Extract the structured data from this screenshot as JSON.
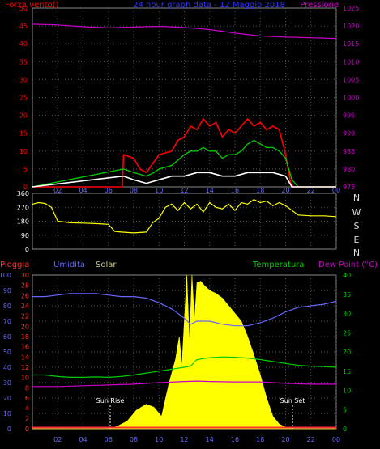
{
  "colors": {
    "wind": "#ff0000",
    "gust": "#ff0000",
    "wind_avg": "#00cc00",
    "wind_min": "#ffffff",
    "pressure": "#cc00cc",
    "direction": "#ffff00",
    "pioggia": "#ff3333",
    "umidita": "#6666ff",
    "solar": "#ffff00",
    "temperatura": "#00cc00",
    "dewpoint": "#cc00cc",
    "axis_blue": "#6666ff",
    "axis_green": "#00cc00",
    "grid": "#555555"
  },
  "top_header": {
    "left": "Forza vento()",
    "center": "24 hour graph data - 12 Maggio 2018",
    "right": "Pressione"
  },
  "dir_labels": [
    "N",
    "W",
    "S",
    "E",
    "N"
  ],
  "bottom_header": {
    "pioggia": "Pioggia",
    "umidita": "Umidita",
    "solar": "Solar",
    "temperatura": "Temperatura",
    "dewpoint": "Dew Point (°C)"
  },
  "annotations": {
    "sunrise": "Sun Rise",
    "sunset": "Sun Set"
  },
  "x_ticks": [
    "02",
    "04",
    "06",
    "08",
    "10",
    "12",
    "14",
    "16",
    "18",
    "20",
    "22",
    "00"
  ],
  "chart_data": [
    {
      "type": "line",
      "title": "24 hour graph data - 12 Maggio 2018",
      "left_axis": {
        "label": "Forza vento()",
        "ylim": [
          0,
          50
        ],
        "ticks": [
          0,
          5,
          10,
          15,
          20,
          25,
          30,
          35,
          40,
          45,
          50
        ]
      },
      "right_axis": {
        "label": "Pressione",
        "ylim": [
          975,
          1025
        ],
        "ticks": [
          975,
          980,
          985,
          990,
          995,
          1000,
          1005,
          1010,
          1015,
          1020,
          1025
        ]
      },
      "x_hours_ticks": [
        "02",
        "04",
        "06",
        "08",
        "10",
        "12",
        "14",
        "16",
        "18",
        "20",
        "22",
        "00"
      ],
      "series": [
        {
          "name": "Pressione",
          "axis": "right",
          "x": [
            0,
            2,
            4,
            6,
            8,
            10,
            12,
            14,
            16,
            18,
            20,
            22,
            24
          ],
          "values": [
            1020.5,
            1020.3,
            1019.8,
            1019.5,
            1019.7,
            1019.9,
            1019.6,
            1019.0,
            1018.0,
            1017.2,
            1016.9,
            1016.7,
            1016.5
          ]
        },
        {
          "x": [
            0,
            7.1,
            7.2,
            8,
            8.5,
            9,
            9.6,
            10,
            11,
            11.5,
            12,
            12.5,
            13,
            13.5,
            14,
            14.5,
            15,
            15.5,
            16,
            16.5,
            17,
            17.5,
            18,
            18.5,
            19,
            19.5,
            20,
            20.4,
            20.6,
            24
          ],
          "values": [
            0,
            0,
            9,
            8,
            5,
            4,
            7,
            9,
            10,
            13,
            14,
            17,
            16,
            19,
            17,
            18,
            14,
            16,
            15,
            17,
            19,
            17,
            18,
            16,
            17,
            16,
            9,
            1,
            0,
            0
          ]
        },
        {
          "x": [
            0,
            7.2,
            8,
            9,
            9.6,
            10,
            11,
            12,
            12.5,
            13,
            13.5,
            14,
            14.5,
            15,
            15.5,
            16,
            16.5,
            17,
            17.5,
            18,
            18.5,
            19,
            19.5,
            20,
            20.5,
            21,
            24
          ],
          "values": [
            0,
            5,
            4,
            3,
            4,
            5,
            6,
            9,
            10,
            10,
            11,
            10,
            10,
            8,
            9,
            9,
            10,
            12,
            13,
            12,
            11,
            11,
            10,
            8,
            2,
            0,
            0
          ]
        },
        {
          "x": [
            0,
            7.2,
            8,
            9,
            10,
            11,
            12,
            13,
            14,
            15,
            16,
            17,
            18,
            19,
            20,
            20.5,
            24
          ],
          "values": [
            0,
            3,
            2,
            1,
            2,
            3,
            3,
            4,
            4,
            3,
            3,
            4,
            4,
            4,
            3,
            0,
            0
          ]
        }
      ]
    },
    {
      "type": "line",
      "ylim": [
        0,
        360
      ],
      "y_ticks": [
        0,
        90,
        180,
        270,
        360
      ],
      "right_labels": [
        "N",
        "W",
        "S",
        "E",
        "N"
      ],
      "series": [
        {
          "x": [
            0,
            0.5,
            1,
            1.5,
            2,
            3,
            4,
            5,
            6,
            6.5,
            7,
            8,
            9,
            9.5,
            10,
            10.5,
            11,
            11.5,
            12,
            12.5,
            13,
            13.5,
            14,
            14.5,
            15,
            15.5,
            16,
            16.5,
            17,
            17.5,
            18,
            18.5,
            19,
            19.5,
            20,
            21,
            22,
            23,
            24
          ],
          "values": [
            290,
            300,
            295,
            270,
            180,
            170,
            168,
            165,
            160,
            115,
            110,
            105,
            110,
            170,
            200,
            270,
            290,
            250,
            300,
            260,
            290,
            240,
            300,
            270,
            260,
            290,
            250,
            300,
            290,
            320,
            300,
            310,
            280,
            300,
            280,
            220,
            215,
            215,
            210
          ]
        }
      ]
    },
    {
      "type": "area",
      "axes": {
        "pioggia": {
          "label": "Pioggia",
          "ticks": [
            0,
            2,
            4,
            6,
            8,
            10,
            12,
            14,
            16,
            18,
            20,
            22,
            24,
            26,
            28,
            30
          ]
        },
        "umidita": {
          "label": "Umidita",
          "ticks": [
            0,
            10,
            20,
            30,
            40,
            50,
            60,
            70,
            80,
            90,
            100
          ]
        },
        "temperatura": {
          "label": "Dew Point (°C)",
          "ticks": [
            0,
            5,
            10,
            15,
            20,
            25,
            30,
            35,
            40
          ]
        }
      },
      "series": [
        {
          "name": "Solar",
          "axis": "solar_pct",
          "x": [
            0,
            6.2,
            6.8,
            7.5,
            8.2,
            9,
            9.6,
            10.2,
            10.8,
            11.3,
            11.6,
            11.8,
            12.0,
            12.2,
            12.4,
            12.6,
            12.8,
            13.0,
            13.3,
            13.6,
            14,
            14.5,
            15,
            15.5,
            16,
            16.5,
            17,
            17.5,
            18,
            18.5,
            19,
            19.5,
            20,
            20.5,
            24
          ],
          "values": [
            0,
            0,
            2,
            5,
            12,
            16,
            14,
            8,
            30,
            45,
            60,
            40,
            70,
            100,
            55,
            100,
            70,
            95,
            96,
            93,
            90,
            88,
            85,
            80,
            75,
            70,
            60,
            48,
            35,
            20,
            8,
            3,
            1,
            0,
            0
          ]
        },
        {
          "name": "Umidita",
          "axis": "umidita",
          "x": [
            0,
            1,
            2,
            3,
            4,
            5,
            6,
            7,
            8,
            9,
            10,
            11,
            12,
            12.5,
            13,
            14,
            15,
            16,
            17,
            18,
            19,
            20,
            21,
            22,
            23,
            24
          ],
          "values": [
            86,
            86,
            87,
            88,
            88,
            88,
            87,
            86,
            86,
            85,
            82,
            78,
            72,
            68,
            70,
            70,
            68,
            67,
            67,
            69,
            72,
            76,
            79,
            80,
            81,
            83
          ]
        },
        {
          "name": "Temperatura",
          "axis": "temperatura",
          "x": [
            0,
            1,
            2,
            3,
            4,
            5,
            6,
            7,
            8,
            9,
            10,
            11,
            12,
            12.5,
            13,
            14,
            15,
            16,
            17,
            18,
            19,
            20,
            21,
            22,
            23,
            24
          ],
          "values": [
            14,
            14,
            13.6,
            13.4,
            13.4,
            13.5,
            13.4,
            13.6,
            14,
            14.5,
            15,
            15.5,
            16,
            16.3,
            18,
            18.5,
            18.7,
            18.6,
            18.4,
            18,
            17.5,
            17,
            16.5,
            16.3,
            16.2,
            16
          ]
        },
        {
          "name": "Dew Point (°C)",
          "axis": "temperatura",
          "x": [
            0,
            2,
            4,
            6,
            8,
            10,
            12,
            13,
            14,
            16,
            18,
            20,
            22,
            24
          ],
          "values": [
            11,
            11,
            11.2,
            11.4,
            11.6,
            12,
            12.3,
            12.4,
            12.3,
            12.2,
            12.2,
            11.8,
            11.6,
            11.6
          ]
        },
        {
          "name": "Pioggia",
          "axis": "pioggia",
          "x": [
            0,
            24
          ],
          "values": [
            0,
            0
          ]
        }
      ]
    }
  ]
}
